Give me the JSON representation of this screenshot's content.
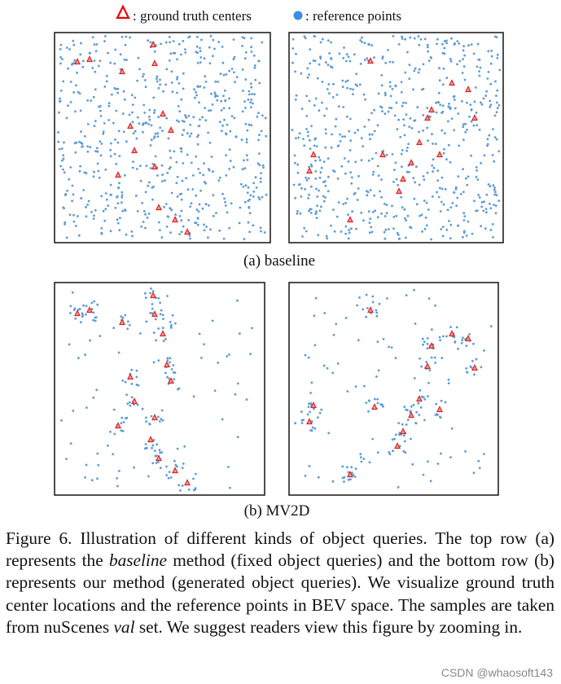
{
  "legend": {
    "ground_truth": ": ground truth centers",
    "reference": ": reference points"
  },
  "panels": {
    "a": "(a) baseline",
    "b": "(b) MV2D"
  },
  "caption": {
    "label": "Figure 6.",
    "parts": [
      " Illustration of different kinds of object queries. The top row (a) represents the ",
      "baseline",
      " method (fixed object queries) and the bottom row (b) represents our method (generated object queries). We visualize ground truth center locations and the reference points in BEV space. The samples are taken from nuScenes ",
      "val",
      " set. We suggest readers view this figure by zooming in."
    ]
  },
  "watermark": "CSDN @whaosoft143"
}
